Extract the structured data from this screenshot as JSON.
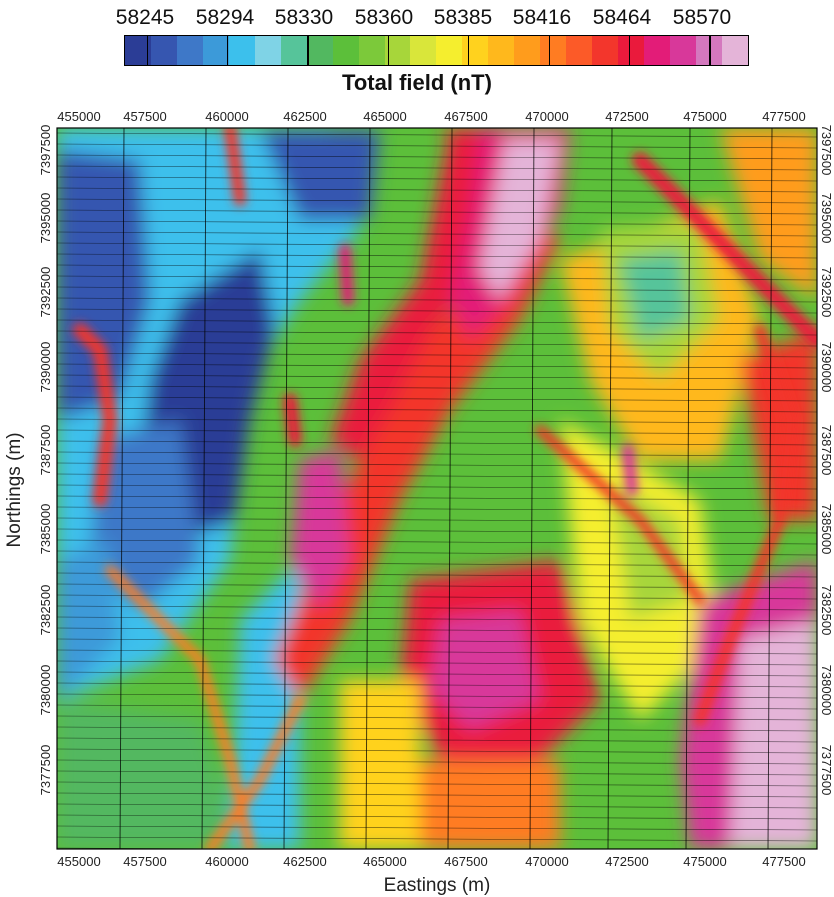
{
  "legend": {
    "title": "Total field (nT)",
    "values": [
      "58245",
      "58294",
      "58330",
      "58360",
      "58385",
      "58416",
      "58464",
      "58570"
    ],
    "colors": [
      "#2b3d96",
      "#3656b0",
      "#3e78c8",
      "#3c9ad9",
      "#3cc0ec",
      "#7fd3e6",
      "#56c49a",
      "#52b860",
      "#5cbf3a",
      "#7cc93a",
      "#a7d63a",
      "#d9e63a",
      "#f5ee2e",
      "#ffd21e",
      "#ffb81c",
      "#ff9c1c",
      "#ff7c22",
      "#fc5a28",
      "#f3362c",
      "#ea1a3c",
      "#e31c78",
      "#d8389a",
      "#d478be",
      "#e4b4d8"
    ]
  },
  "map": {
    "x_axis_title": "Eastings (m)",
    "y_axis_title": "Northings (m)",
    "x_ticks": [
      "455000",
      "457500",
      "460000",
      "462500",
      "465000",
      "467500",
      "470000",
      "472500",
      "475000",
      "477500"
    ],
    "y_ticks": [
      "7397500",
      "7395000",
      "7392500",
      "7390000",
      "7387500",
      "7385000",
      "7382500",
      "7380000",
      "7377500"
    ]
  }
}
